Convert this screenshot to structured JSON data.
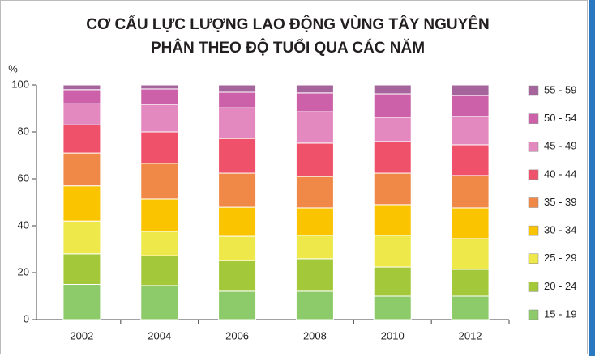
{
  "chart_data": {
    "type": "stacked_bar",
    "title": [
      "CƠ CẤU LỰC LƯỢNG LAO ĐỘNG VÙNG TÂY NGUYÊN",
      "PHÂN THEO ĐỘ TUỔI QUA CÁC NĂM"
    ],
    "y_label": "%",
    "categories": [
      "2002",
      "2004",
      "2006",
      "2008",
      "2010",
      "2012"
    ],
    "series": [
      {
        "name": "15 - 19",
        "color": "#8dcb6a",
        "values": [
          15,
          14.5,
          12.1,
          12.1,
          10.0,
          10.0
        ]
      },
      {
        "name": "20 - 24",
        "color": "#a3c93a",
        "values": [
          13,
          12.7,
          13.1,
          13.8,
          12.4,
          11.4
        ]
      },
      {
        "name": "25 - 29",
        "color": "#eee84a",
        "values": [
          14,
          10.4,
          10.3,
          10.0,
          13.5,
          13.1
        ]
      },
      {
        "name": "30 - 34",
        "color": "#fbc400",
        "values": [
          15,
          13.8,
          12.4,
          11.7,
          13.1,
          13.1
        ]
      },
      {
        "name": "35 - 39",
        "color": "#f08847",
        "values": [
          14,
          15.2,
          14.5,
          13.4,
          13.4,
          13.8
        ]
      },
      {
        "name": "40 - 44",
        "color": "#ef506a",
        "values": [
          12,
          13.4,
          14.8,
          14.2,
          13.5,
          13.1
        ]
      },
      {
        "name": "45 - 49",
        "color": "#e389bf",
        "values": [
          9,
          11.7,
          13.1,
          13.4,
          10.3,
          12.1
        ]
      },
      {
        "name": "50 - 54",
        "color": "#cc61a9",
        "values": [
          6,
          6.6,
          6.6,
          8.0,
          10.0,
          8.9
        ]
      },
      {
        "name": "55 - 59",
        "color": "#a6649d",
        "values": [
          2,
          1.7,
          3.1,
          3.4,
          3.8,
          4.5
        ]
      }
    ],
    "ylim": [
      0,
      100
    ],
    "yticks": [
      0,
      20,
      40,
      60,
      80,
      100
    ],
    "grid": false,
    "legend": "right"
  }
}
